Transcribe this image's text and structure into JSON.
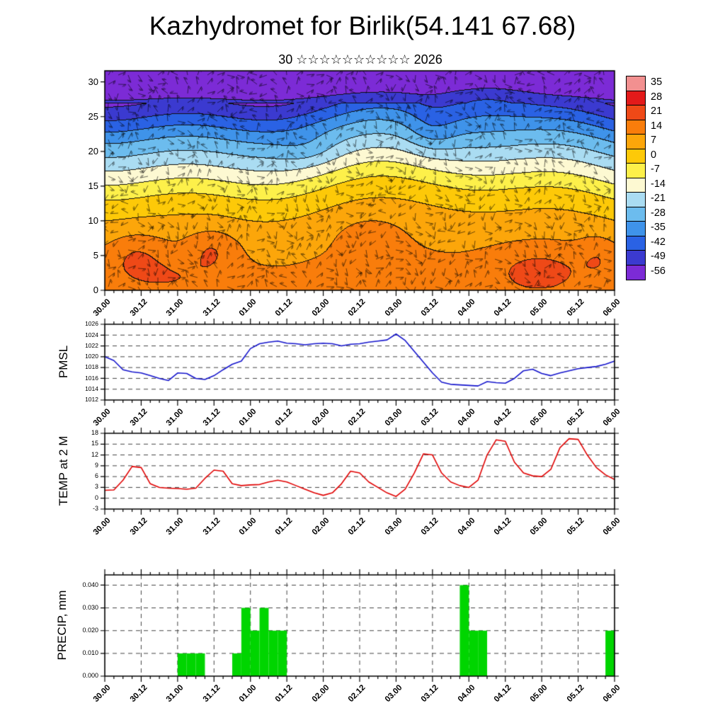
{
  "title": "Kazhydromet for Birlik(54.141 67.68)",
  "subtitle": "30 ☆☆☆☆☆☆☆☆☆☆ 2026",
  "x_axis": {
    "total_hours": 168,
    "major_step_hours": 12,
    "minor_step_hours": 3,
    "tick_labels": [
      "30.00",
      "30.12",
      "31.00",
      "31.12",
      "01.00",
      "01.12",
      "02.00",
      "02.12",
      "03.00",
      "03.12",
      "04.00",
      "04.12",
      "05.00",
      "05.12",
      "06.00"
    ]
  },
  "chart_data": [
    {
      "type": "heatmap",
      "name": "temperature-wind-cross-section",
      "ylim": [
        0,
        31.6
      ],
      "yticks": [
        0,
        5,
        10,
        15,
        20,
        25,
        30
      ],
      "levels": [
        35,
        28,
        21,
        14,
        7,
        0,
        -7,
        -14,
        -21,
        -28,
        -35,
        -42,
        -49,
        -56
      ],
      "colors": [
        "#f29090",
        "#e31a1a",
        "#ef4917",
        "#f97d0b",
        "#fca60a",
        "#fdc908",
        "#fdf04a",
        "#fdf9d2",
        "#aadcf2",
        "#6cbcee",
        "#3f93ea",
        "#2a62e4",
        "#3b3ad0",
        "#7c2bd6"
      ],
      "profile": [
        [
          0,
          13
        ],
        [
          4,
          11
        ],
        [
          8,
          8
        ],
        [
          11,
          4
        ],
        [
          13,
          0
        ],
        [
          15,
          -5
        ],
        [
          17,
          -12
        ],
        [
          19,
          -19
        ],
        [
          21,
          -26
        ],
        [
          23,
          -33
        ],
        [
          25,
          -42
        ],
        [
          27,
          -50
        ],
        [
          29,
          -56
        ],
        [
          31.6,
          -60
        ]
      ],
      "anomalies": [
        {
          "x": 0.06,
          "y": 5,
          "sx": 0.06,
          "sy": 3.5,
          "a": 8
        },
        {
          "x": 0.21,
          "y": 6,
          "sx": 0.05,
          "sy": 3,
          "a": 8
        },
        {
          "x": 0.14,
          "y": 2,
          "sx": 0.1,
          "sy": 3,
          "a": 5
        },
        {
          "x": 0.52,
          "y": 8,
          "sx": 0.07,
          "sy": 3,
          "a": 4
        },
        {
          "x": 0.85,
          "y": 3,
          "sx": 0.1,
          "sy": 3.5,
          "a": 8
        },
        {
          "x": 0.97,
          "y": 5,
          "sx": 0.04,
          "sy": 3,
          "a": 6
        },
        {
          "x": 0.64,
          "y": 23,
          "sx": 0.05,
          "sy": 3.5,
          "a": -7
        },
        {
          "x": 0.4,
          "y": 20,
          "sx": 0.06,
          "sy": 2.5,
          "a": -4
        },
        {
          "x": 0.75,
          "y": 27,
          "sx": 0.08,
          "sy": 3,
          "a": 6
        }
      ],
      "wind_barbs": true
    },
    {
      "type": "line",
      "name": "pmsl",
      "label": "PMSL",
      "color": "#1414cc",
      "ylim": [
        1012,
        1026
      ],
      "yticks": [
        1012,
        1014,
        1016,
        1018,
        1020,
        1022,
        1024,
        1026
      ],
      "start_hour": 0,
      "step_hours": 3,
      "values": [
        1020.0,
        1019.3,
        1017.6,
        1017.2,
        1017.0,
        1016.5,
        1016.0,
        1015.6,
        1017.0,
        1016.9,
        1016.0,
        1015.8,
        1016.5,
        1017.6,
        1018.6,
        1019.2,
        1021.5,
        1022.4,
        1022.7,
        1022.9,
        1022.5,
        1022.4,
        1022.2,
        1022.4,
        1022.5,
        1022.4,
        1022.0,
        1022.3,
        1022.4,
        1022.7,
        1022.9,
        1023.1,
        1024.2,
        1023.0,
        1021.0,
        1019.0,
        1017.0,
        1015.3,
        1014.9,
        1014.8,
        1014.7,
        1014.6,
        1015.4,
        1015.2,
        1015.1,
        1016.0,
        1017.4,
        1017.7,
        1016.9,
        1016.5,
        1017.0,
        1017.4,
        1017.8,
        1018.0,
        1018.2,
        1018.6,
        1019.2
      ]
    },
    {
      "type": "line",
      "name": "temp-2m",
      "label": "TEMP at 2 M",
      "color": "#e00000",
      "ylim": [
        -3,
        18
      ],
      "yticks": [
        -3,
        0,
        3,
        6,
        9,
        12,
        15,
        18
      ],
      "start_hour": 0,
      "step_hours": 3,
      "values": [
        2.2,
        2.3,
        5.0,
        8.8,
        8.5,
        4.0,
        3.0,
        2.8,
        2.7,
        2.5,
        2.8,
        5.5,
        7.8,
        7.5,
        4.0,
        3.5,
        3.7,
        3.8,
        4.5,
        5.0,
        4.5,
        3.5,
        2.5,
        1.5,
        0.8,
        1.5,
        4.0,
        7.5,
        7.0,
        4.5,
        3.0,
        1.5,
        0.5,
        2.5,
        7.0,
        12.3,
        12.0,
        7.0,
        4.5,
        3.5,
        3.0,
        5.0,
        12.0,
        16.2,
        15.8,
        10.0,
        7.0,
        6.2,
        6.0,
        8.0,
        14.0,
        16.5,
        16.3,
        12.0,
        8.5,
        6.5,
        5.2
      ]
    },
    {
      "type": "bar",
      "name": "precip",
      "label": "PRECIP, mm",
      "color": "#00d500",
      "ylim": [
        0,
        0.0445
      ],
      "yticks": [
        0,
        0.01,
        0.02,
        0.03,
        0.04
      ],
      "ytick_labels": [
        "0.000",
        "0.010",
        "0.020",
        "0.030",
        "0.040"
      ],
      "start_hour": 0,
      "step_hours": 3,
      "values": [
        0,
        0,
        0,
        0,
        0,
        0,
        0,
        0,
        0.01,
        0.01,
        0.01,
        0,
        0,
        0,
        0.01,
        0.03,
        0.02,
        0.03,
        0.02,
        0.02,
        0,
        0,
        0,
        0,
        0,
        0,
        0,
        0,
        0,
        0,
        0,
        0,
        0,
        0,
        0,
        0,
        0,
        0,
        0,
        0.04,
        0.02,
        0.02,
        0,
        0,
        0,
        0,
        0,
        0,
        0,
        0,
        0,
        0,
        0,
        0,
        0,
        0.02,
        0
      ]
    }
  ]
}
